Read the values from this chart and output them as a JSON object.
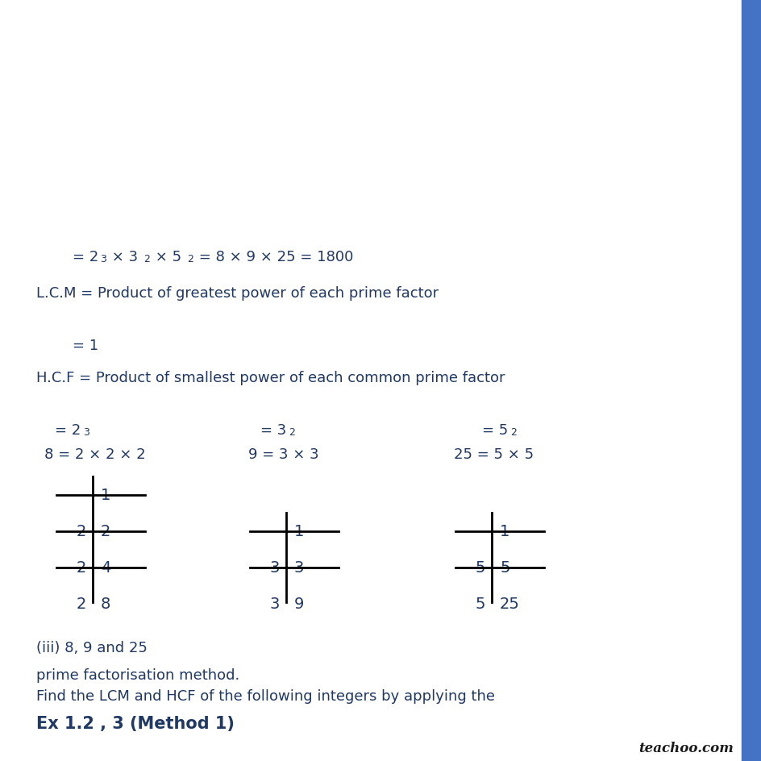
{
  "title": "Ex 1.2 , 3 (Method 1)",
  "subtitle1": "Find the LCM and HCF of the following integers by applying the",
  "subtitle2": "prime factorisation method.",
  "part": "(iii) 8, 9 and 25",
  "watermark": "teachoo.com",
  "text_color": "#1f3864",
  "bg_color": "#ffffff",
  "sidebar_color": "#4472c4",
  "font_size_title": 15,
  "font_size_body": 13,
  "font_size_table": 14,
  "font_size_super": 9
}
